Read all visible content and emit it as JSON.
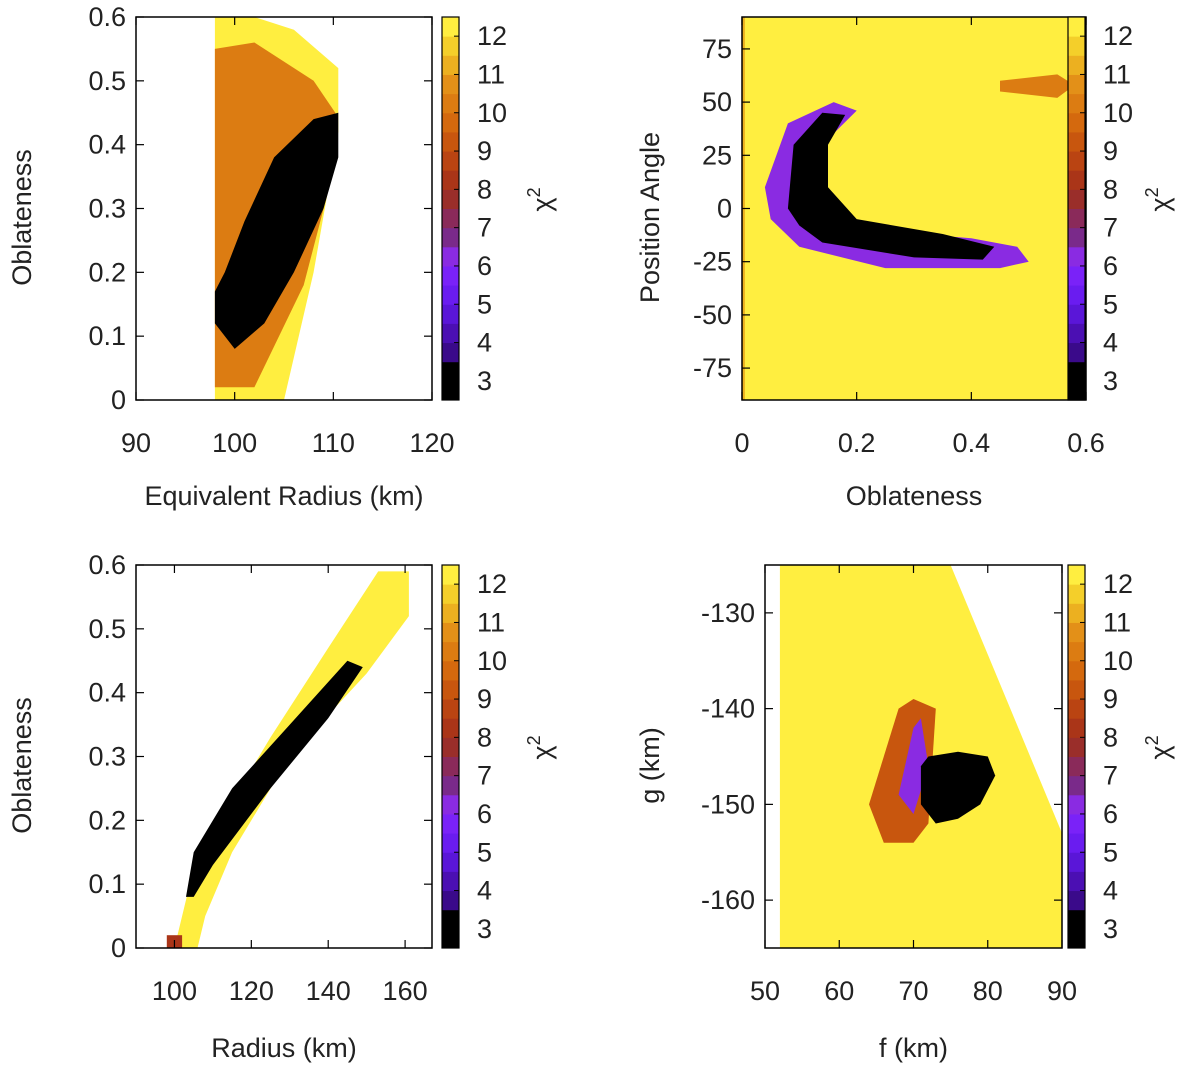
{
  "colorbar": {
    "label": "χ",
    "label_sup": "2",
    "ticks": [
      "3",
      "4",
      "5",
      "6",
      "7",
      "8",
      "9",
      "10",
      "11",
      "12"
    ],
    "range": [
      2.5,
      12.5
    ],
    "levels": [
      {
        "from": 2.5,
        "to": 3.5,
        "color": "#000000"
      },
      {
        "from": 3.5,
        "to": 4.0,
        "color": "#3a0a8a"
      },
      {
        "from": 4.0,
        "to": 4.5,
        "color": "#4b0fb3"
      },
      {
        "from": 4.5,
        "to": 5.0,
        "color": "#5a16d8"
      },
      {
        "from": 5.0,
        "to": 5.5,
        "color": "#6a1cf0"
      },
      {
        "from": 5.5,
        "to": 6.0,
        "color": "#7a22f8"
      },
      {
        "from": 6.0,
        "to": 6.5,
        "color": "#8a2be2"
      },
      {
        "from": 6.5,
        "to": 7.0,
        "color": "#7a2a8a"
      },
      {
        "from": 7.0,
        "to": 7.5,
        "color": "#8a2a5a"
      },
      {
        "from": 7.5,
        "to": 8.0,
        "color": "#9a2e2a"
      },
      {
        "from": 8.0,
        "to": 8.5,
        "color": "#aa3518"
      },
      {
        "from": 8.5,
        "to": 9.0,
        "color": "#ba4412"
      },
      {
        "from": 9.0,
        "to": 9.5,
        "color": "#c8560e"
      },
      {
        "from": 9.5,
        "to": 10.0,
        "color": "#d4690e"
      },
      {
        "from": 10.0,
        "to": 10.5,
        "color": "#dc7c12"
      },
      {
        "from": 10.5,
        "to": 11.0,
        "color": "#e39018"
      },
      {
        "from": 11.0,
        "to": 11.5,
        "color": "#ecb020"
      },
      {
        "from": 11.5,
        "to": 12.0,
        "color": "#f4cf2a"
      },
      {
        "from": 12.0,
        "to": 12.5,
        "color": "#ffee40"
      }
    ]
  },
  "chart_data": [
    {
      "type": "heatmap",
      "title": "",
      "xlabel": "Equivalent Radius (km)",
      "ylabel": "Oblateness",
      "xlim": [
        90,
        120
      ],
      "ylim": [
        0,
        0.6
      ],
      "xticks": [
        "90",
        "100",
        "110",
        "120"
      ],
      "yticks": [
        "0",
        "0.1",
        "0.2",
        "0.3",
        "0.4",
        "0.5",
        "0.6"
      ],
      "colorbar_label": "χ²",
      "regions": [
        {
          "level": 12,
          "points": [
            [
              98,
              0
            ],
            [
              98,
              0.6
            ],
            [
              102,
              0.6
            ],
            [
              106,
              0.58
            ],
            [
              110.5,
              0.52
            ],
            [
              110.5,
              0.42
            ],
            [
              108,
              0.2
            ],
            [
              105,
              0
            ]
          ]
        },
        {
          "level": 10,
          "points": [
            [
              98,
              0.02
            ],
            [
              98,
              0.55
            ],
            [
              102,
              0.56
            ],
            [
              108,
              0.5
            ],
            [
              110.2,
              0.45
            ],
            [
              110.2,
              0.37
            ],
            [
              107,
              0.18
            ],
            [
              102,
              0.02
            ]
          ]
        },
        {
          "level": 3,
          "points": [
            [
              98,
              0.17
            ],
            [
              98,
              0.12
            ],
            [
              100,
              0.08
            ],
            [
              103,
              0.12
            ],
            [
              106,
              0.2
            ],
            [
              109,
              0.3
            ],
            [
              110.5,
              0.38
            ],
            [
              110.5,
              0.45
            ],
            [
              108,
              0.44
            ],
            [
              104,
              0.38
            ],
            [
              101,
              0.28
            ],
            [
              99,
              0.2
            ]
          ]
        }
      ]
    },
    {
      "type": "heatmap",
      "title": "",
      "xlabel": "Oblateness",
      "ylabel": "Position Angle",
      "xlim": [
        0,
        0.6
      ],
      "ylim": [
        -90,
        90
      ],
      "xticks": [
        "0",
        "0.2",
        "0.4",
        "0.6"
      ],
      "yticks": [
        "-75",
        "-50",
        "-25",
        "0",
        "25",
        "50",
        "75"
      ],
      "colorbar_label": "χ²",
      "regions": [
        {
          "level": 12,
          "points": [
            [
              0,
              -90
            ],
            [
              0,
              90
            ],
            [
              0.6,
              90
            ],
            [
              0.6,
              -90
            ]
          ]
        },
        {
          "level": 11,
          "points": [
            [
              0,
              -90
            ],
            [
              0,
              90
            ],
            [
              0.005,
              90
            ],
            [
              0.005,
              -90
            ]
          ]
        },
        {
          "level": 10,
          "points": [
            [
              0.45,
              55
            ],
            [
              0.55,
              52
            ],
            [
              0.58,
              58
            ],
            [
              0.55,
              63
            ],
            [
              0.45,
              60
            ]
          ]
        },
        {
          "level": 6,
          "points": [
            [
              0.04,
              10
            ],
            [
              0.08,
              40
            ],
            [
              0.16,
              50
            ],
            [
              0.2,
              46
            ],
            [
              0.14,
              30
            ],
            [
              0.14,
              0
            ],
            [
              0.22,
              -10
            ],
            [
              0.4,
              -14
            ],
            [
              0.48,
              -18
            ],
            [
              0.5,
              -25
            ],
            [
              0.45,
              -28
            ],
            [
              0.25,
              -28
            ],
            [
              0.1,
              -18
            ],
            [
              0.05,
              -5
            ]
          ]
        },
        {
          "level": 3,
          "points": [
            [
              0.08,
              0
            ],
            [
              0.09,
              30
            ],
            [
              0.14,
              45
            ],
            [
              0.18,
              44
            ],
            [
              0.15,
              30
            ],
            [
              0.15,
              10
            ],
            [
              0.2,
              -5
            ],
            [
              0.35,
              -12
            ],
            [
              0.44,
              -18
            ],
            [
              0.42,
              -24
            ],
            [
              0.3,
              -23
            ],
            [
              0.14,
              -16
            ],
            [
              0.1,
              -8
            ]
          ]
        }
      ]
    },
    {
      "type": "heatmap",
      "title": "",
      "xlabel": "Radius (km)",
      "ylabel": "Oblateness",
      "xlim": [
        90,
        167
      ],
      "ylim": [
        0,
        0.6
      ],
      "xticks": [
        "100",
        "120",
        "140",
        "160"
      ],
      "yticks": [
        "0",
        "0.1",
        "0.2",
        "0.3",
        "0.4",
        "0.5",
        "0.6"
      ],
      "colorbar_label": "χ²",
      "regions": [
        {
          "level": 12,
          "points": [
            [
              100,
              0
            ],
            [
              104,
              0.1
            ],
            [
              112,
              0.2
            ],
            [
              125,
              0.33
            ],
            [
              140,
              0.47
            ],
            [
              153,
              0.59
            ],
            [
              161,
              0.59
            ],
            [
              161,
              0.52
            ],
            [
              150,
              0.43
            ],
            [
              130,
              0.3
            ],
            [
              115,
              0.15
            ],
            [
              108,
              0.05
            ],
            [
              106,
              0
            ]
          ]
        },
        {
          "level": 8,
          "points": [
            [
              98,
              0
            ],
            [
              98,
              0.02
            ],
            [
              102,
              0.02
            ],
            [
              102,
              0
            ]
          ]
        },
        {
          "level": 3,
          "points": [
            [
              103,
              0.08
            ],
            [
              105,
              0.15
            ],
            [
              115,
              0.25
            ],
            [
              130,
              0.35
            ],
            [
              145,
              0.45
            ],
            [
              149,
              0.44
            ],
            [
              140,
              0.36
            ],
            [
              125,
              0.25
            ],
            [
              110,
              0.13
            ],
            [
              105,
              0.08
            ]
          ]
        }
      ]
    },
    {
      "type": "heatmap",
      "title": "",
      "xlabel": "f (km)",
      "ylabel": "g (km)",
      "xlim": [
        50,
        90
      ],
      "ylim": [
        -165,
        -125
      ],
      "xticks": [
        "50",
        "60",
        "70",
        "80",
        "90"
      ],
      "yticks": [
        "-160",
        "-150",
        "-140",
        "-130"
      ],
      "colorbar_label": "χ²",
      "regions": [
        {
          "level": 12,
          "points": [
            [
              52,
              -165
            ],
            [
              52,
              -125
            ],
            [
              75,
              -125
            ],
            [
              90,
              -153
            ],
            [
              90,
              -165
            ]
          ]
        },
        {
          "level": 9,
          "points": [
            [
              64,
              -150
            ],
            [
              66,
              -145
            ],
            [
              68,
              -140
            ],
            [
              70,
              -139
            ],
            [
              73,
              -140
            ],
            [
              72,
              -152
            ],
            [
              70,
              -154
            ],
            [
              66,
              -154
            ]
          ]
        },
        {
          "level": 6,
          "points": [
            [
              68,
              -149
            ],
            [
              70,
              -142
            ],
            [
              71,
              -141
            ],
            [
              72,
              -146
            ],
            [
              70,
              -151
            ]
          ]
        },
        {
          "level": 3,
          "points": [
            [
              71,
              -146
            ],
            [
              72,
              -145
            ],
            [
              76,
              -144.5
            ],
            [
              80,
              -145
            ],
            [
              81,
              -147
            ],
            [
              79,
              -150
            ],
            [
              76,
              -151.5
            ],
            [
              73,
              -152
            ],
            [
              71,
              -150
            ]
          ]
        }
      ]
    }
  ]
}
